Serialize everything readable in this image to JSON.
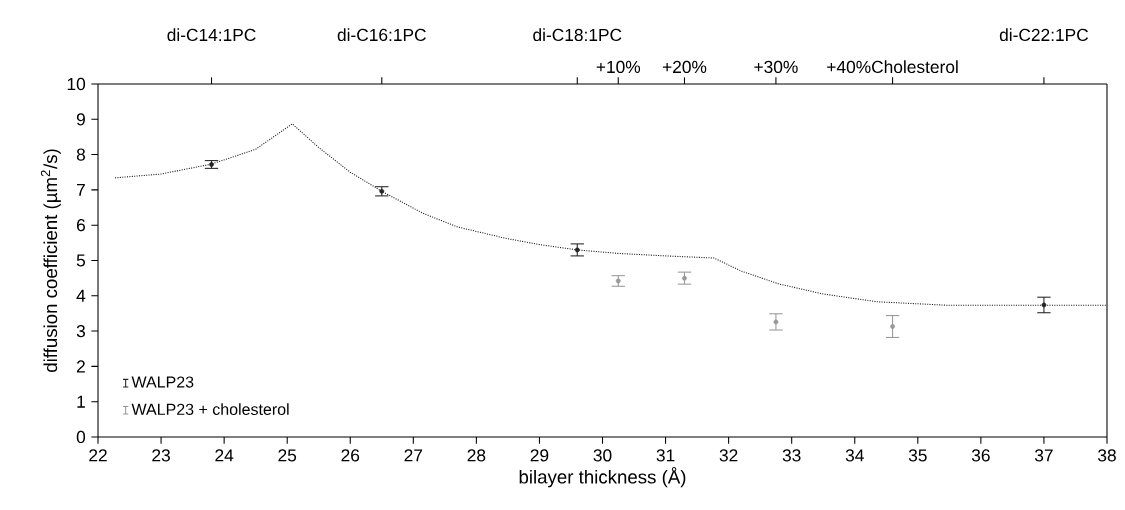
{
  "chart_data": {
    "type": "scatter",
    "xlabel": "bilayer thickness (Å)",
    "ylabel": "diffusion coefficient (µm$^{2}$/s)",
    "xlim": [
      22,
      38
    ],
    "ylim": [
      0,
      10
    ],
    "xticks": [
      22,
      23,
      24,
      25,
      26,
      27,
      28,
      29,
      30,
      31,
      32,
      33,
      34,
      35,
      36,
      37,
      38
    ],
    "yticks": [
      0,
      1,
      2,
      3,
      4,
      5,
      6,
      7,
      8,
      9,
      10
    ],
    "annotations": [
      "di-C14:1PC",
      "di-C16:1PC",
      "di-C18:1PC",
      {
        "text": "+10%",
        "x": 30.25
      },
      {
        "text": "+20%",
        "x": 31.3
      },
      {
        "text": "+30%",
        "x": 32.75
      },
      {
        "text": "+40%Cholesterol",
        "x": 34.6
      },
      "di-C22:1PC"
    ],
    "legend": "bottom left",
    "series": [
      {
        "type": "line",
        "color": "#1a1a1a",
        "line_style": "dotted",
        "marker": "none",
        "x": [
          22.27,
          23,
          23.8,
          24.5,
          25.08,
          25.5,
          26,
          26.5,
          27.15,
          27.7,
          28.46,
          29,
          29.6,
          30.25,
          31,
          31.77,
          32.2,
          32.79,
          33.5,
          34.36,
          35.49,
          37,
          38
        ],
        "values": [
          7.34,
          7.45,
          7.73,
          8.15,
          8.87,
          8.2,
          7.5,
          6.96,
          6.34,
          5.95,
          5.63,
          5.45,
          5.3,
          5.2,
          5.13,
          5.07,
          4.7,
          4.34,
          4.05,
          3.83,
          3.73,
          3.73,
          3.73
        ]
      },
      {
        "name": "WALP23",
        "color": "#262626",
        "marker": "circle",
        "x": [
          23.8,
          26.5,
          29.6,
          37
        ],
        "values": [
          7.72,
          6.96,
          5.3,
          3.74
        ],
        "errors": [
          0.11,
          0.13,
          0.17,
          0.22
        ]
      },
      {
        "name": "WALP23 + cholesterol",
        "color": "#999999",
        "marker": "circle",
        "x": [
          30.25,
          31.3,
          32.75,
          34.6
        ],
        "values": [
          4.42,
          4.5,
          3.26,
          3.13
        ],
        "errors": [
          0.15,
          0.17,
          0.23,
          0.31
        ]
      }
    ]
  }
}
